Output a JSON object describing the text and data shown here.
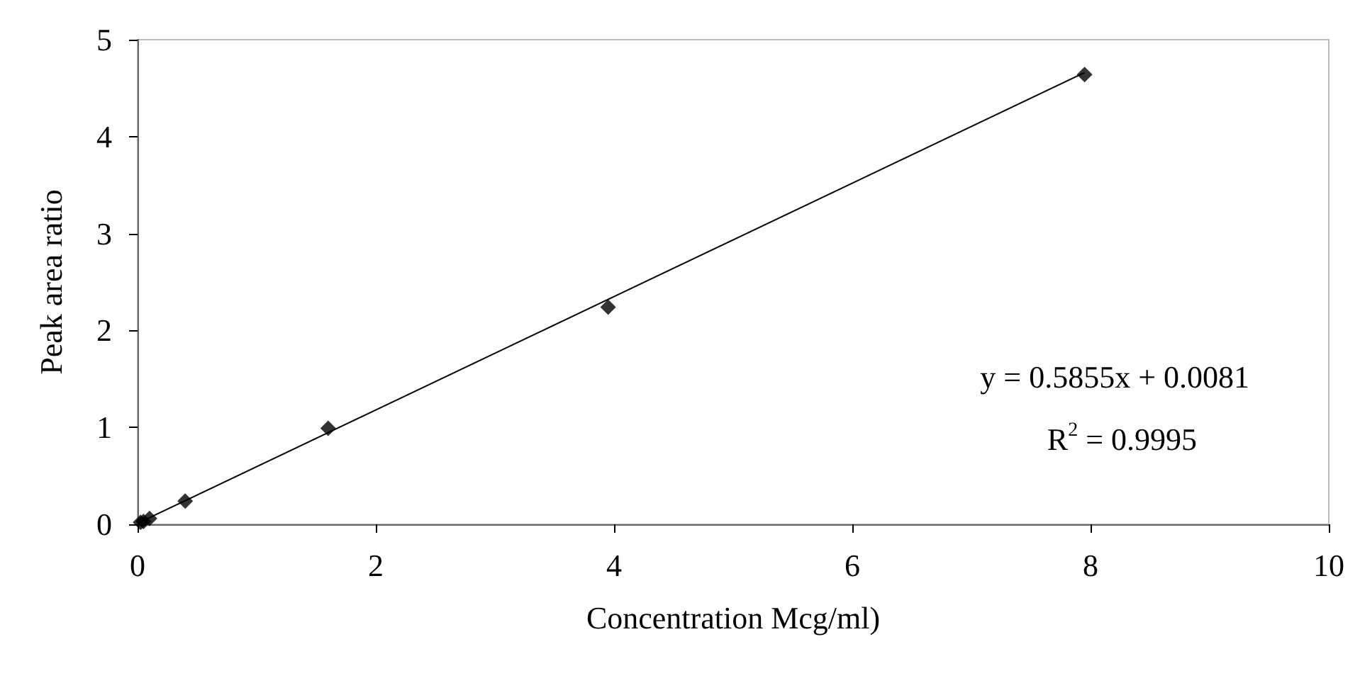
{
  "chart_data": {
    "type": "scatter",
    "xlabel": "Concentration Mcg/ml)",
    "ylabel": "Peak area ratio",
    "series": [
      {
        "color": "#000000",
        "x": [
          0.025,
          0.05,
          0.1,
          0.4,
          1.6,
          3.95,
          7.95
        ],
        "values": [
          0.02,
          0.03,
          0.06,
          0.24,
          0.99,
          2.24,
          4.64
        ],
        "marker": "diamond"
      },
      {
        "type": "line",
        "color": "#000000",
        "x": [
          0,
          7.95
        ],
        "values": [
          0.01,
          4.66
        ],
        "marker": "none"
      }
    ],
    "annotations": [
      "y = 0.5855x + 0.0081",
      "R$^{2}$ = 0.9995"
    ],
    "xlim": [
      0,
      10
    ],
    "xticks": [
      0,
      2,
      4,
      6,
      8,
      10
    ],
    "ylim": [
      0,
      5
    ],
    "yticks": [
      0,
      1,
      2,
      3,
      4,
      5
    ],
    "grid": false
  }
}
